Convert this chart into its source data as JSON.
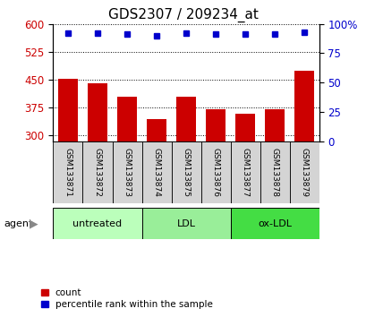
{
  "title": "GDS2307 / 209234_at",
  "samples": [
    "GSM133871",
    "GSM133872",
    "GSM133873",
    "GSM133874",
    "GSM133875",
    "GSM133876",
    "GSM133877",
    "GSM133878",
    "GSM133879"
  ],
  "bar_values": [
    452,
    440,
    405,
    345,
    405,
    370,
    358,
    370,
    475
  ],
  "percentile_values": [
    92,
    92,
    91,
    90,
    92,
    91,
    91,
    91,
    93
  ],
  "ylim_left": [
    285,
    600
  ],
  "ylim_right": [
    0,
    100
  ],
  "yticks_left": [
    300,
    375,
    450,
    525,
    600
  ],
  "yticks_right": [
    0,
    25,
    50,
    75,
    100
  ],
  "bar_color": "#cc0000",
  "dot_color": "#0000cc",
  "groups": [
    {
      "label": "untreated",
      "start": 0,
      "end": 3,
      "color": "#bbffbb"
    },
    {
      "label": "LDL",
      "start": 3,
      "end": 6,
      "color": "#99ee99"
    },
    {
      "label": "ox-LDL",
      "start": 6,
      "end": 9,
      "color": "#44dd44"
    }
  ],
  "agent_label": "agent",
  "legend_count_label": "count",
  "legend_pct_label": "percentile rank within the sample",
  "plot_bg": "#ffffff",
  "sample_bg": "#d4d4d4",
  "title_fontsize": 11,
  "tick_fontsize": 8.5,
  "sample_fontsize": 6.5,
  "group_fontsize": 8,
  "legend_fontsize": 7.5
}
